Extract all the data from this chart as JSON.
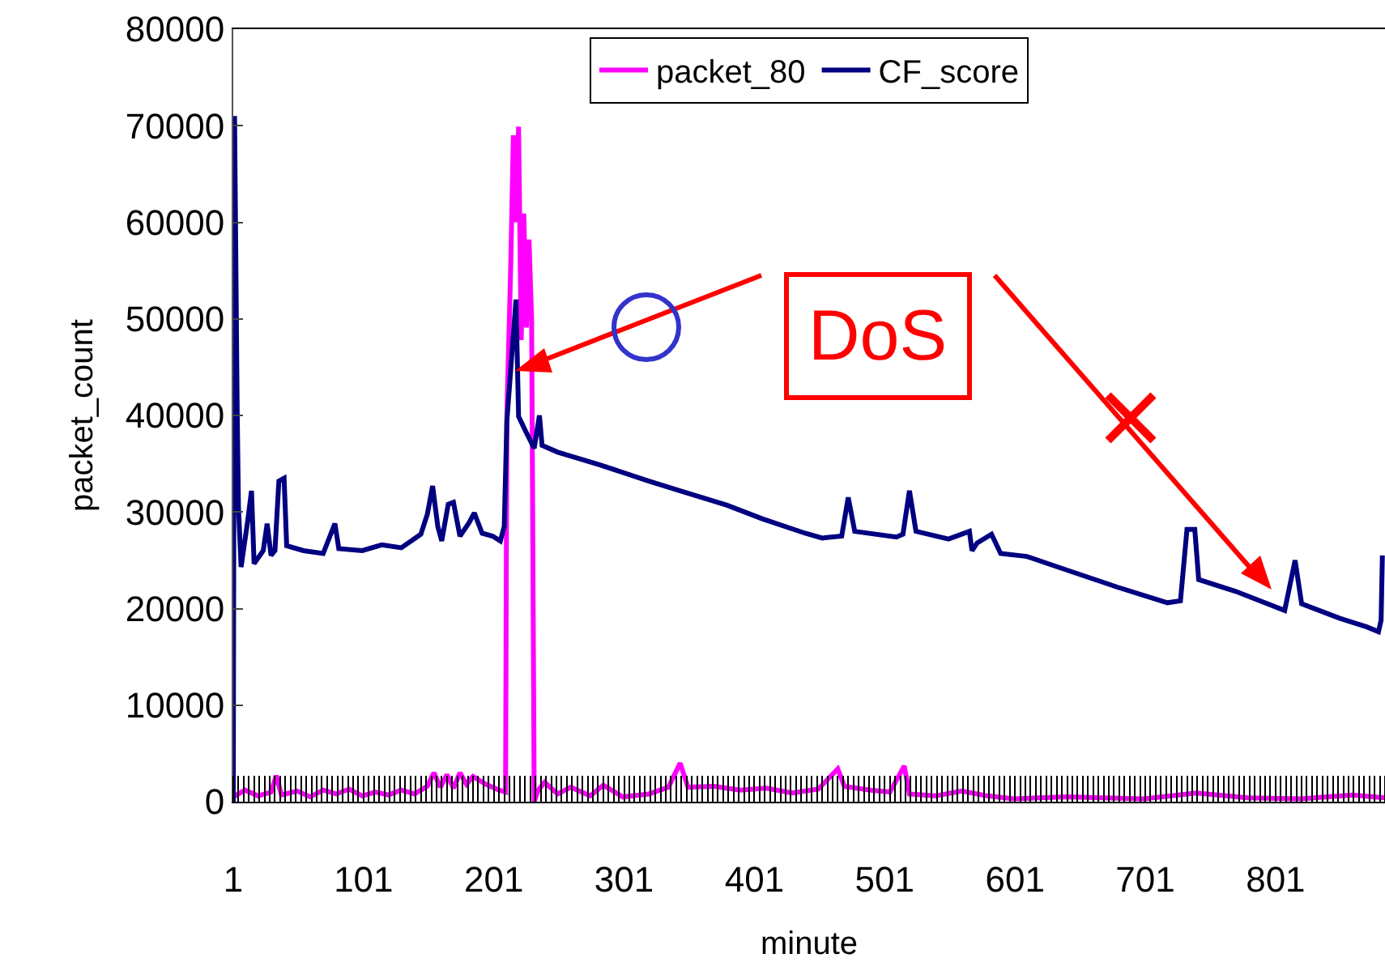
{
  "chart_data": {
    "type": "line",
    "xlabel": "minute",
    "ylabel": "packet_count",
    "xlim": [
      1,
      885
    ],
    "xticks": [
      1,
      101,
      201,
      301,
      401,
      501,
      601,
      701,
      801
    ],
    "ylim": [
      0,
      80000
    ],
    "yticks": [
      0,
      10000,
      20000,
      30000,
      40000,
      50000,
      60000,
      70000,
      80000
    ],
    "grid": false,
    "legend": "top",
    "marker": "none",
    "line_style": "solid",
    "annotations": [
      "DoS"
    ],
    "series": [
      {
        "name": "packet_80",
        "color": "#ff00ff",
        "x": [
          1,
          10,
          20,
          30,
          34,
          38,
          50,
          60,
          70,
          80,
          90,
          100,
          110,
          120,
          130,
          140,
          150,
          155,
          160,
          165,
          170,
          175,
          180,
          185,
          195,
          205,
          210,
          211,
          214,
          216,
          218,
          220,
          222,
          224,
          226,
          228,
          230,
          232,
          235,
          240,
          250,
          260,
          275,
          285,
          300,
          320,
          335,
          344,
          350,
          370,
          390,
          410,
          430,
          450,
          465,
          470,
          490,
          505,
          516,
          520,
          540,
          560,
          580,
          600,
          640,
          700,
          740,
          780,
          820,
          860,
          885
        ],
        "values": [
          500,
          1200,
          600,
          1000,
          2700,
          700,
          1100,
          500,
          1200,
          800,
          1300,
          600,
          1000,
          700,
          1200,
          800,
          1600,
          3000,
          1500,
          2800,
          1400,
          3000,
          1800,
          2600,
          1800,
          1200,
          1000,
          40000,
          55700,
          69000,
          60000,
          69900,
          47800,
          60900,
          49100,
          58200,
          50000,
          0,
          1200,
          2000,
          800,
          1500,
          600,
          1700,
          500,
          800,
          1500,
          4000,
          1500,
          1600,
          1200,
          1400,
          900,
          1300,
          3400,
          1600,
          1200,
          1000,
          3700,
          800,
          600,
          1100,
          600,
          300,
          500,
          300,
          900,
          400,
          300,
          700,
          400
        ]
      },
      {
        "name": "CF_score",
        "color": "#000080",
        "x": [
          1,
          2,
          4,
          5,
          7,
          12,
          15,
          17,
          24,
          27,
          30,
          33,
          36,
          40,
          42,
          55,
          70,
          79,
          82,
          100,
          115,
          130,
          145,
          150,
          154,
          158,
          161,
          166,
          170,
          175,
          182,
          186,
          192,
          200,
          206,
          209,
          211,
          218,
          220,
          226,
          232,
          236,
          238,
          250,
          282,
          320,
          344,
          380,
          407,
          440,
          453,
          468,
          473,
          478,
          510,
          515,
          520,
          525,
          550,
          566,
          568,
          572,
          583,
          590,
          610,
          634,
          680,
          718,
          728,
          733,
          739,
          742,
          770,
          808,
          816,
          821,
          850,
          871,
          880,
          882,
          883
        ],
        "values": [
          0,
          71000,
          40600,
          30500,
          24300,
          29000,
          32200,
          24650,
          26000,
          28800,
          25500,
          26000,
          33200,
          33500,
          26500,
          26000,
          25700,
          28800,
          26200,
          26000,
          26600,
          26300,
          27700,
          29800,
          32700,
          28500,
          27000,
          30800,
          31000,
          27500,
          28900,
          29900,
          27800,
          27500,
          27000,
          28500,
          39400,
          52000,
          39900,
          38200,
          36600,
          40000,
          36900,
          36200,
          34900,
          33200,
          32200,
          30700,
          29300,
          27800,
          27300,
          27500,
          31500,
          28000,
          27400,
          27700,
          32200,
          28000,
          27200,
          28000,
          26000,
          26800,
          27700,
          25700,
          25400,
          24300,
          22200,
          20600,
          20800,
          28200,
          28200,
          23000,
          21800,
          19800,
          25000,
          20500,
          19000,
          18100,
          17600,
          18800,
          25500
        ]
      }
    ]
  }
}
